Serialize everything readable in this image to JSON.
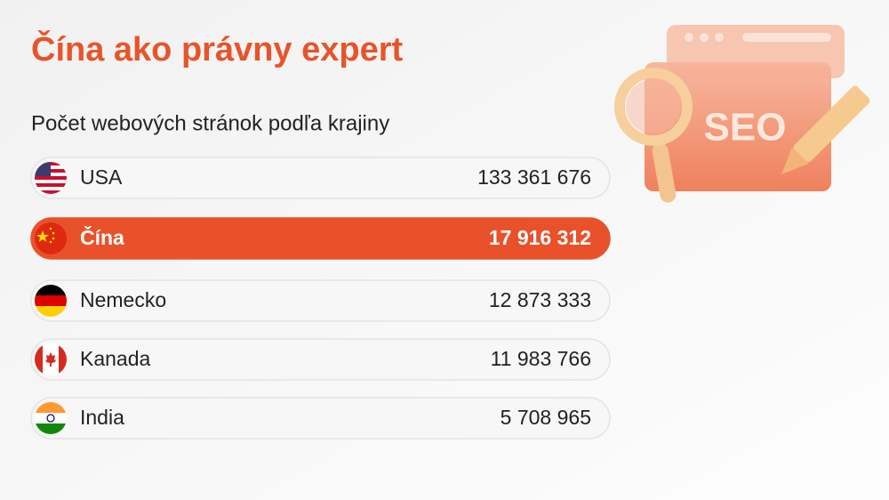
{
  "header": {
    "title": "Čína ako právny expert"
  },
  "table": {
    "caption": "Počet webových stránok podľa krajiny",
    "highlight_row": 1,
    "rows": [
      {
        "country": "USA",
        "count": "133 361 676"
      },
      {
        "country": "Čína",
        "count": "17 916 312"
      },
      {
        "country": "Nemecko",
        "count": "12 873 333"
      },
      {
        "country": "Kanada",
        "count": "11 983 766"
      },
      {
        "country": "India",
        "count": "5 708 965"
      }
    ]
  },
  "illustration": {
    "label": "SEO"
  }
}
